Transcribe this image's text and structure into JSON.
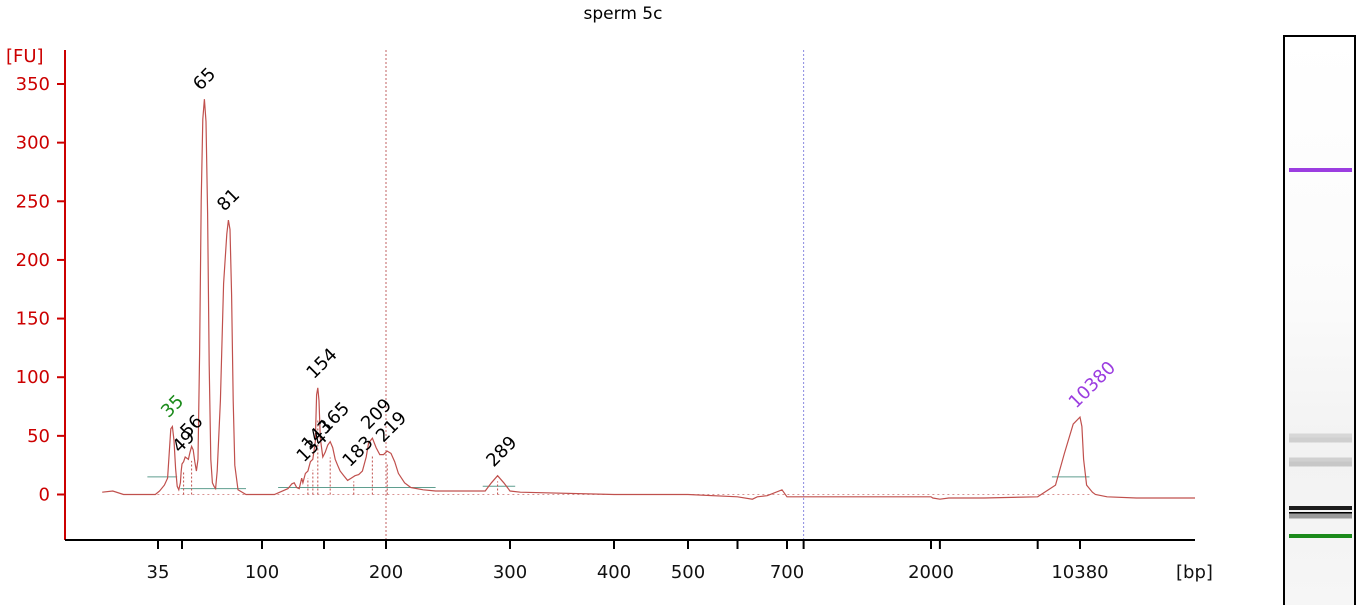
{
  "chart_data": {
    "type": "line",
    "title": "sperm 5c",
    "ylabel": "[FU]",
    "xlabel": "[bp]",
    "ylim": [
      -38,
      370
    ],
    "y_ticks": [
      0,
      50,
      100,
      150,
      200,
      250,
      300,
      350
    ],
    "x_tick_labels": [
      "35",
      "100",
      "200",
      "300",
      "400",
      "500",
      "700",
      "2000",
      "10380"
    ],
    "colors": {
      "trace": "#c0504d",
      "axis": "#cc0000",
      "lower_marker": "#1a8a1a",
      "upper_marker": "#9b3de0",
      "baseline": "#5f9e8f"
    },
    "series": [
      {
        "values": [
          [
            14,
            2
          ],
          [
            18,
            3
          ],
          [
            22,
            0
          ],
          [
            34,
            0
          ],
          [
            36,
            3
          ],
          [
            39,
            8
          ],
          [
            41,
            14
          ],
          [
            42,
            35
          ],
          [
            43,
            56
          ],
          [
            44,
            58
          ],
          [
            45,
            46
          ],
          [
            46,
            22
          ],
          [
            47,
            7
          ],
          [
            48,
            4
          ],
          [
            49,
            10
          ],
          [
            49.5,
            20
          ],
          [
            50,
            26
          ],
          [
            51,
            28
          ],
          [
            52,
            32
          ],
          [
            54,
            30
          ],
          [
            55,
            36
          ],
          [
            56,
            41
          ],
          [
            57,
            38
          ],
          [
            58,
            28
          ],
          [
            59,
            20
          ],
          [
            60,
            30
          ],
          [
            61,
            120
          ],
          [
            62,
            250
          ],
          [
            63,
            320
          ],
          [
            64,
            337
          ],
          [
            65,
            318
          ],
          [
            66,
            240
          ],
          [
            67,
            110
          ],
          [
            68,
            30
          ],
          [
            69,
            10
          ],
          [
            70,
            7
          ],
          [
            71,
            5
          ],
          [
            72,
            20
          ],
          [
            74,
            80
          ],
          [
            76,
            180
          ],
          [
            78,
            222
          ],
          [
            79,
            234
          ],
          [
            80,
            226
          ],
          [
            81,
            170
          ],
          [
            82,
            80
          ],
          [
            83,
            25
          ],
          [
            85,
            4
          ],
          [
            90,
            0
          ],
          [
            110,
            0
          ],
          [
            121,
            5
          ],
          [
            124,
            9
          ],
          [
            126,
            10
          ],
          [
            128,
            6
          ],
          [
            130,
            5
          ],
          [
            132,
            14
          ],
          [
            133,
            10
          ],
          [
            135,
            18
          ],
          [
            137,
            20
          ],
          [
            139,
            28
          ],
          [
            141,
            30
          ],
          [
            143,
            45
          ],
          [
            144,
            85
          ],
          [
            145,
            91
          ],
          [
            146,
            80
          ],
          [
            147,
            48
          ],
          [
            149,
            32
          ],
          [
            151,
            36
          ],
          [
            153,
            42
          ],
          [
            155,
            45
          ],
          [
            157,
            40
          ],
          [
            159,
            30
          ],
          [
            161,
            25
          ],
          [
            163,
            20
          ],
          [
            166,
            16
          ],
          [
            169,
            12
          ],
          [
            172,
            14
          ],
          [
            175,
            16
          ],
          [
            178,
            17
          ],
          [
            181,
            20
          ],
          [
            184,
            32
          ],
          [
            186,
            44
          ],
          [
            189,
            48
          ],
          [
            192,
            40
          ],
          [
            195,
            34
          ],
          [
            198,
            34
          ],
          [
            201,
            37
          ],
          [
            204,
            35
          ],
          [
            207,
            28
          ],
          [
            210,
            18
          ],
          [
            215,
            10
          ],
          [
            220,
            6
          ],
          [
            230,
            4
          ],
          [
            240,
            3
          ],
          [
            260,
            3
          ],
          [
            280,
            3
          ],
          [
            285,
            10
          ],
          [
            290,
            16
          ],
          [
            295,
            10
          ],
          [
            300,
            3
          ],
          [
            310,
            2
          ],
          [
            400,
            0
          ],
          [
            500,
            0
          ],
          [
            600,
            -2
          ],
          [
            630,
            -4
          ],
          [
            640,
            -2
          ],
          [
            660,
            -1
          ],
          [
            690,
            4
          ],
          [
            700,
            -2
          ],
          [
            800,
            -2
          ],
          [
            1000,
            -2
          ],
          [
            1500,
            -2
          ],
          [
            2000,
            -2
          ],
          [
            2100,
            -3
          ],
          [
            2500,
            -4
          ],
          [
            3000,
            -3
          ],
          [
            5000,
            -3
          ],
          [
            8000,
            -2
          ],
          [
            9000,
            8
          ],
          [
            9500,
            35
          ],
          [
            10000,
            60
          ],
          [
            10380,
            66
          ],
          [
            10700,
            58
          ],
          [
            11000,
            30
          ],
          [
            11500,
            8
          ],
          [
            12500,
            2
          ],
          [
            13000,
            0
          ],
          [
            15000,
            -2
          ],
          [
            20000,
            -3
          ],
          [
            30000,
            -3
          ]
        ]
      }
    ],
    "peaks": [
      {
        "label": "35",
        "bp": 44,
        "fu": 58,
        "color": "#1a8a1a"
      },
      {
        "label": "49",
        "bp": 51,
        "fu": 28,
        "color": "#000000"
      },
      {
        "label": "56",
        "bp": 56,
        "fu": 41,
        "color": "#000000"
      },
      {
        "label": "65",
        "bp": 64,
        "fu": 337,
        "color": "#000000"
      },
      {
        "label": "81",
        "bp": 79,
        "fu": 234,
        "color": "#000000"
      },
      {
        "label": "134",
        "bp": 137,
        "fu": 20,
        "color": "#000000"
      },
      {
        "label": "143",
        "bp": 141,
        "fu": 30,
        "color": "#000000"
      },
      {
        "label": "154",
        "bp": 145,
        "fu": 91,
        "color": "#000000"
      },
      {
        "label": "165",
        "bp": 155,
        "fu": 45,
        "color": "#000000"
      },
      {
        "label": "183",
        "bp": 174,
        "fu": 16,
        "color": "#000000"
      },
      {
        "label": "209",
        "bp": 189,
        "fu": 48,
        "color": "#000000"
      },
      {
        "label": "219",
        "bp": 201,
        "fu": 37,
        "color": "#000000"
      },
      {
        "label": "289",
        "bp": 290,
        "fu": 16,
        "color": "#000000"
      },
      {
        "label": "10380",
        "bp": 10380,
        "fu": 66,
        "color": "#9b3de0"
      }
    ],
    "grid": false,
    "gel_lane": {
      "bands": [
        {
          "bp": 10380,
          "color": "#9b3de0"
        },
        {
          "bp": 219,
          "color": "#d7d7d7"
        },
        {
          "bp": 209,
          "color": "#cfcfcf"
        },
        {
          "bp": 165,
          "color": "#d0d0d0"
        },
        {
          "bp": 154,
          "color": "#c7c7c7"
        },
        {
          "bp": 81,
          "color": "#1c1c1c"
        },
        {
          "bp": 65,
          "color": "#000000"
        },
        {
          "bp": 56,
          "color": "#9a9a9a"
        },
        {
          "bp": 35,
          "color": "#1a8a1a"
        }
      ]
    }
  }
}
